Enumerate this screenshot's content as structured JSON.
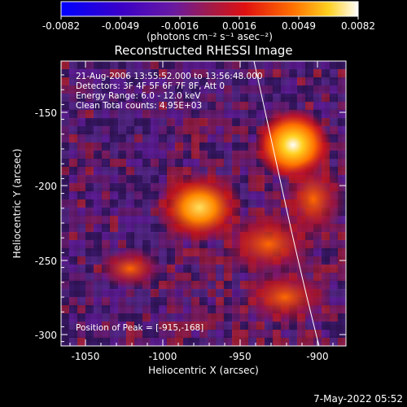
{
  "colorbar": {
    "tick_labels": [
      "-0.0082",
      "-0.0049",
      "-0.0016",
      "0.0016",
      "0.0049",
      "0.0082"
    ],
    "unit_label": "(photons cm⁻² s⁻¹ asec⁻²)",
    "colors": [
      "#0000ff",
      "#3a00c8",
      "#6a1aa0",
      "#a01a4a",
      "#e01010",
      "#ff7000",
      "#ffd020",
      "#ffffff"
    ]
  },
  "image": {
    "title": "Reconstructed RHESSI Image",
    "xlabel": "Heliocentric X (arcsec)",
    "ylabel": "Heliocentric Y (arcsec)",
    "x_ticks": [
      "-1050",
      "-1000",
      "-950",
      "-900"
    ],
    "y_ticks": [
      "-150",
      "-200",
      "-250",
      "-300"
    ],
    "info": [
      "21-Aug-2006 13:55:52.000 to 13:56:48.000",
      "Detectors: 3F 4F 5F 6F 7F 8F, Att 0",
      "Energy Range: 6.0 - 12.0 keV",
      "Clean    Total counts: 4.95E+03"
    ],
    "peak_label": "Position of Peak = [-915,-168]"
  },
  "footer": {
    "timestamp": "7-May-2022 05:52"
  }
}
